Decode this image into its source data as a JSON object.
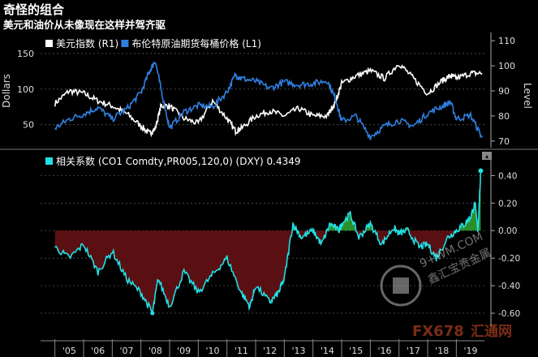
{
  "header": {
    "title": "奇怪的组合",
    "subtitle": "美元和油价从未像现在这样并驾齐驱"
  },
  "watermark": {
    "site": "9+WM.COM",
    "cn": "鑫汇宝贵金属",
    "brand": "FX678",
    "brand_cn": "汇通网"
  },
  "colors": {
    "background": "#000000",
    "dxy": "#ffffff",
    "brent": "#2f7fe0",
    "correlation": "#22e0e6",
    "negative_fill": "#5a0f12",
    "positive_fill": "#2a8f2a",
    "grid": "#555555",
    "axis_text": "#dddddd"
  },
  "chart_data": [
    {
      "type": "line",
      "legend": [
        {
          "label": "美元指数 (R1)",
          "color": "#ffffff"
        },
        {
          "label": "布伦特原油期货每桶价格 (L1)",
          "color": "#2f7fe0"
        }
      ],
      "legend_placement": "top-left",
      "ylabel_left": "Dollars",
      "ylabel_right": "Level",
      "left_ticks": [
        50,
        100,
        150
      ],
      "left_ylim": [
        20,
        175
      ],
      "right_ticks": [
        70,
        80,
        90,
        100,
        110
      ],
      "right_ylim": [
        68,
        112
      ],
      "grid": true,
      "x": [
        2005.0,
        2005.5,
        2006.0,
        2006.5,
        2007.0,
        2007.5,
        2008.0,
        2008.3,
        2008.5,
        2008.7,
        2009.0,
        2009.5,
        2010.0,
        2010.5,
        2011.0,
        2011.3,
        2011.5,
        2012.0,
        2012.5,
        2013.0,
        2013.5,
        2014.0,
        2014.5,
        2014.8,
        2015.0,
        2015.5,
        2016.0,
        2016.5,
        2017.0,
        2017.5,
        2018.0,
        2018.5,
        2018.8,
        2019.0,
        2019.5,
        2019.9
      ],
      "series": [
        {
          "name": "美元指数 (R1)",
          "axis": "right",
          "values": [
            85,
            90,
            89,
            86,
            84,
            81,
            76,
            73,
            75,
            84,
            84,
            79,
            77,
            86,
            79,
            74,
            75,
            80,
            82,
            80,
            83,
            80,
            80,
            86,
            93,
            96,
            98,
            95,
            101,
            95,
            89,
            94,
            96,
            95,
            97,
            97
          ]
        },
        {
          "name": "布伦特原油期货每桶价格 (L1)",
          "axis": "left",
          "values": [
            45,
            58,
            65,
            74,
            58,
            72,
            95,
            125,
            140,
            100,
            45,
            68,
            77,
            75,
            96,
            120,
            115,
            111,
            101,
            110,
            106,
            108,
            112,
            85,
            55,
            62,
            33,
            48,
            56,
            48,
            66,
            76,
            82,
            58,
            63,
            32
          ]
        }
      ]
    },
    {
      "type": "area",
      "legend": [
        {
          "label": "相关系数 (CO1 Comdty,PR005,120,0) (DXY) 0.4349",
          "color": "#22e0e6"
        }
      ],
      "legend_placement": "top-left",
      "y_ticks": [
        -0.6,
        -0.4,
        -0.2,
        0.0,
        0.2,
        0.4
      ],
      "ylim": [
        -0.7,
        0.52
      ],
      "grid": true,
      "last_value": 0.4349,
      "x": [
        2005.0,
        2005.5,
        2006.0,
        2006.5,
        2007.0,
        2007.5,
        2008.0,
        2008.4,
        2008.6,
        2009.0,
        2009.5,
        2010.0,
        2010.5,
        2011.0,
        2011.5,
        2011.8,
        2012.0,
        2012.5,
        2012.8,
        2013.0,
        2013.3,
        2013.6,
        2014.0,
        2014.3,
        2014.6,
        2014.9,
        2015.0,
        2015.3,
        2015.6,
        2016.0,
        2016.4,
        2016.8,
        2017.0,
        2017.3,
        2017.7,
        2018.0,
        2018.3,
        2018.7,
        2019.0,
        2019.3,
        2019.5,
        2019.65,
        2019.75,
        2019.8,
        2019.85
      ],
      "values": [
        -0.12,
        -0.2,
        -0.1,
        -0.3,
        -0.15,
        -0.35,
        -0.45,
        -0.6,
        -0.35,
        -0.55,
        -0.3,
        -0.45,
        -0.32,
        -0.2,
        -0.45,
        -0.55,
        -0.4,
        -0.52,
        -0.45,
        -0.35,
        0.05,
        -0.05,
        0.0,
        -0.1,
        0.05,
        0.0,
        0.05,
        0.12,
        -0.05,
        0.05,
        -0.1,
        0.02,
        -0.02,
        0.0,
        -0.12,
        -0.1,
        -0.2,
        -0.05,
        0.0,
        0.05,
        0.1,
        0.2,
        0.0,
        0.2,
        0.43
      ]
    }
  ],
  "x_tick_labels": [
    "'05",
    "'06",
    "'07",
    "'08",
    "'09",
    "'10",
    "'11",
    "'12",
    "'13",
    "'14",
    "'15",
    "'16",
    "'17",
    "'18",
    "'19"
  ]
}
